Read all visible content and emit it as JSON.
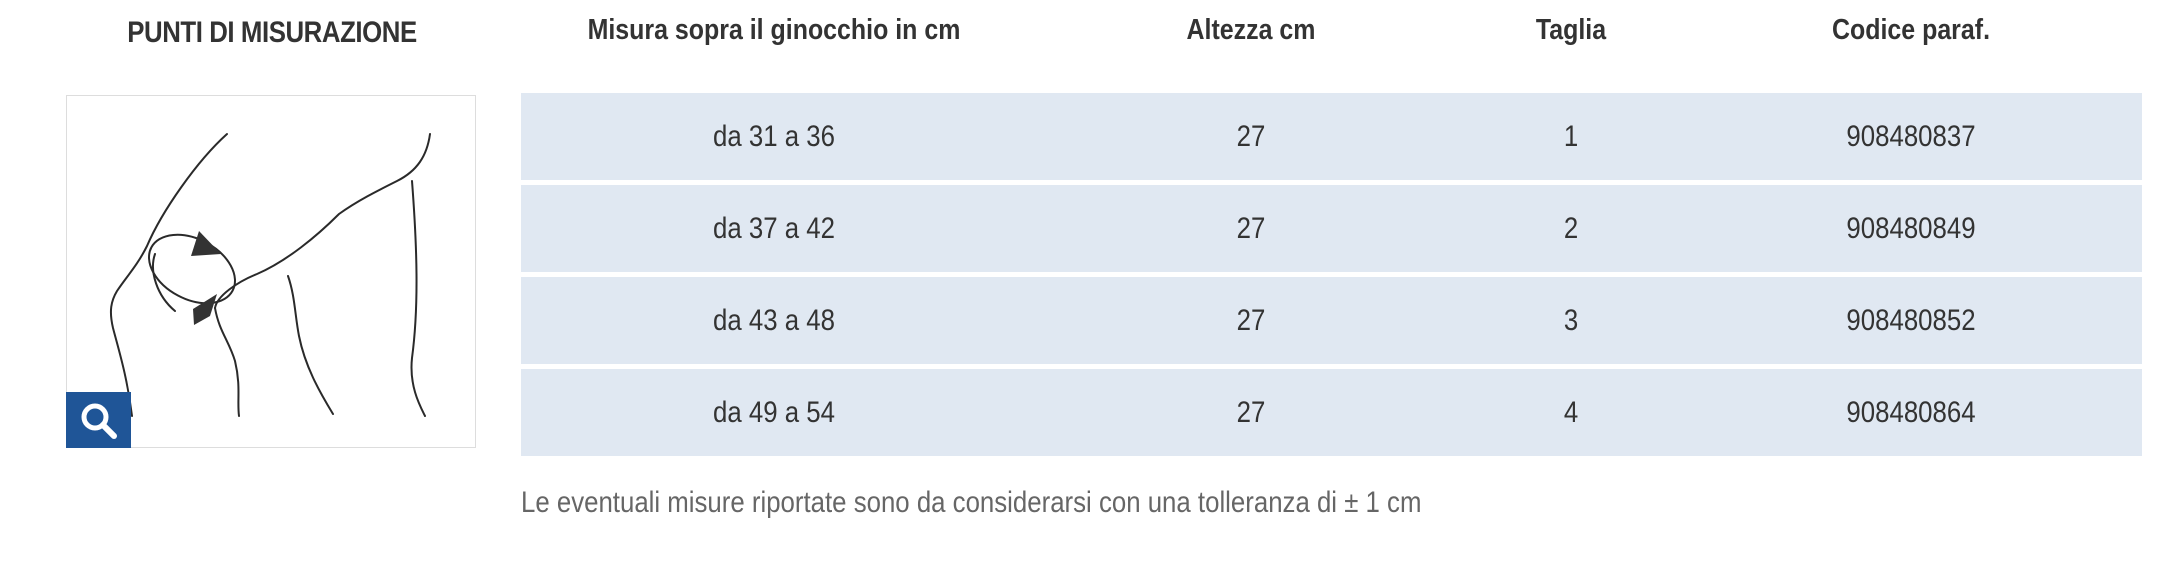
{
  "measuring_points": {
    "title": "PUNTI DI MISURAZIONE",
    "zoom_icon": "search-icon"
  },
  "table": {
    "headers": [
      "Misura sopra il ginocchio in cm",
      "Altezza cm",
      "Taglia",
      "Codice paraf."
    ],
    "rows": [
      [
        "da 31 a 36",
        "27",
        "1",
        "908480837"
      ],
      [
        "da 37 a 42",
        "27",
        "2",
        "908480849"
      ],
      [
        "da 43 a 48",
        "27",
        "3",
        "908480852"
      ],
      [
        "da 49 a 54",
        "27",
        "4",
        "908480864"
      ]
    ]
  },
  "note": "Le eventuali misure riportate sono da considerarsi con una tolleranza di ± 1 cm",
  "colors": {
    "row_background": "#e0e8f2",
    "zoom_button": "#1f5597",
    "text": "#333333"
  }
}
